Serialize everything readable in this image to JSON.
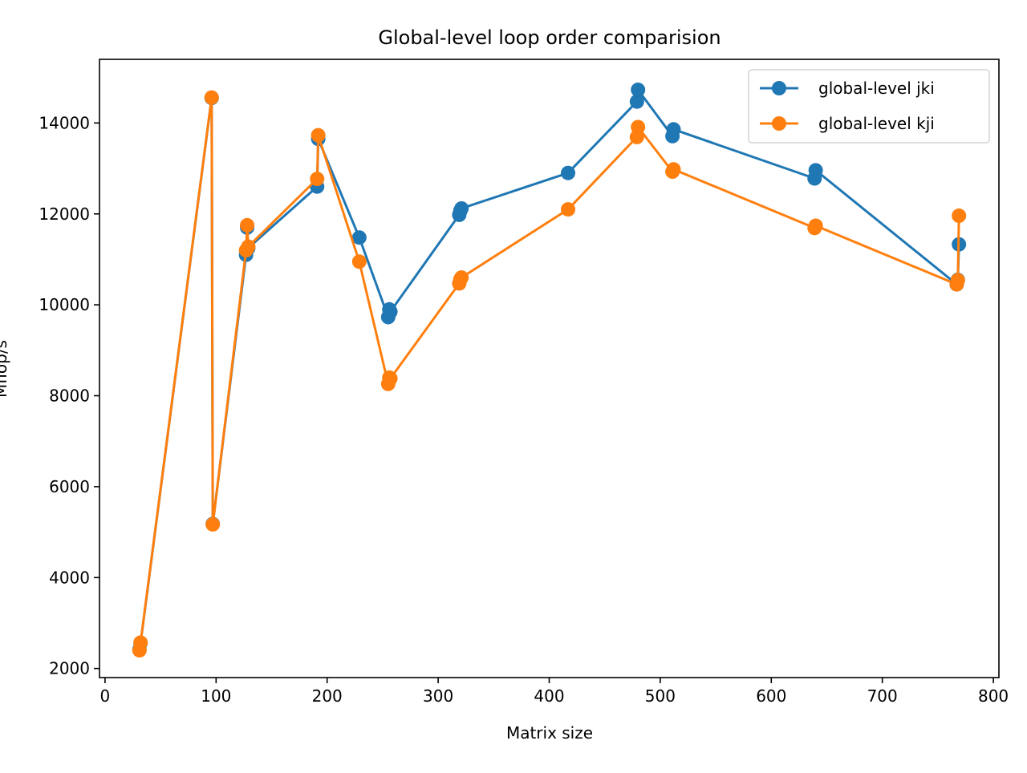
{
  "chart_data": {
    "type": "line",
    "title": "Global-level loop order comparision",
    "xlabel": "Matrix size",
    "ylabel": "Mflop/s",
    "xlim": [
      -5,
      805
    ],
    "ylim": [
      1800,
      15400
    ],
    "xticks": [
      0,
      100,
      200,
      300,
      400,
      500,
      600,
      700,
      800
    ],
    "yticks": [
      2000,
      4000,
      6000,
      8000,
      10000,
      12000,
      14000
    ],
    "grid": false,
    "legend_position": "top-right",
    "series": [
      {
        "name": "global-level jki",
        "color": "#1f77b4",
        "x": [
          31,
          32,
          96,
          97,
          127,
          128,
          129,
          191,
          192,
          229,
          255,
          256,
          257,
          319,
          320,
          321,
          417,
          479,
          480,
          511,
          512,
          639,
          640,
          767,
          768,
          769
        ],
        "y": [
          2420,
          2560,
          14550,
          5180,
          11100,
          11700,
          11250,
          12600,
          13650,
          11480,
          9730,
          9900,
          9850,
          11980,
          12070,
          12120,
          12900,
          14470,
          14730,
          13710,
          13860,
          12780,
          12960,
          10450,
          10550,
          11330
        ]
      },
      {
        "name": "global-level kji",
        "color": "#ff7f0e",
        "x": [
          31,
          32,
          96,
          97,
          127,
          128,
          129,
          191,
          192,
          229,
          255,
          256,
          257,
          319,
          320,
          321,
          417,
          479,
          480,
          511,
          512,
          639,
          640,
          767,
          768,
          769
        ],
        "y": [
          2400,
          2570,
          14560,
          5170,
          11200,
          11750,
          11280,
          12770,
          13730,
          10950,
          8260,
          8400,
          8380,
          10470,
          10560,
          10600,
          12100,
          13690,
          13910,
          12930,
          12980,
          11690,
          11740,
          10450,
          10540,
          11960
        ]
      }
    ]
  }
}
